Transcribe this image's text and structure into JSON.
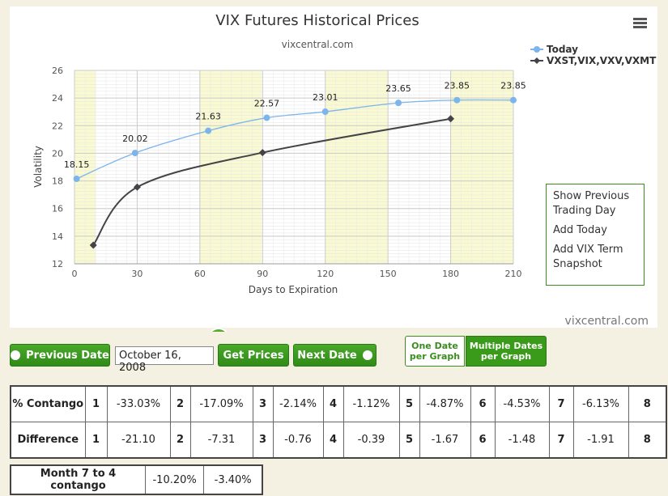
{
  "chart_data": {
    "type": "line",
    "title": "VIX Futures Historical Prices",
    "subtitle": "vixcentral.com",
    "x_label": "Days to Expiration",
    "y_label": "Volatility",
    "xlim": [
      0,
      210
    ],
    "xticks": [
      0,
      30,
      60,
      90,
      120,
      150,
      180,
      210
    ],
    "ylim": [
      12,
      26
    ],
    "yticks": [
      12,
      14,
      16,
      18,
      20,
      22,
      24,
      26
    ],
    "grid": true,
    "legend": "top-right",
    "series": [
      {
        "name": "Today",
        "color": "#7cb5ec",
        "marker": "circle",
        "data_labels": true,
        "x": [
          1,
          29,
          64,
          92,
          120,
          155,
          183,
          210
        ],
        "values": [
          18.15,
          20.02,
          21.63,
          22.57,
          23.01,
          23.65,
          23.85,
          23.85
        ]
      },
      {
        "name": "VXST,VIX,VXV,VXMT",
        "color": "#434348",
        "marker": "diamond",
        "data_labels": false,
        "x": [
          9,
          30,
          90,
          180
        ],
        "values": [
          13.35,
          17.55,
          20.05,
          22.5
        ]
      }
    ],
    "credits": "vixcentral.com"
  },
  "menu": [
    "Show Previous Trading Day",
    "Add Today",
    "Add VIX Term Snapshot"
  ],
  "controls": {
    "previous": "Previous Date",
    "date": "October 16, 2008",
    "get": "Get Prices",
    "next": "Next Date",
    "modes": [
      "One Date per Graph",
      "Multiple Dates per Graph"
    ]
  },
  "table": {
    "rows": [
      [
        "% Contango",
        "1",
        "-33.03%",
        "2",
        "-17.09%",
        "3",
        "-2.14%",
        "4",
        "-1.12%",
        "5",
        "-4.87%",
        "6",
        "-4.53%",
        "7",
        "-6.13%",
        "8"
      ],
      [
        "Difference",
        "1",
        "-21.10",
        "2",
        "-7.31",
        "3",
        "-0.76",
        "4",
        "-0.39",
        "5",
        "-1.67",
        "6",
        "-1.48",
        "7",
        "-1.91",
        "8"
      ]
    ]
  },
  "summary": {
    "rows": [
      [
        "Month 7 to 4 contango",
        "-10.20%",
        "-3.40%"
      ]
    ]
  }
}
